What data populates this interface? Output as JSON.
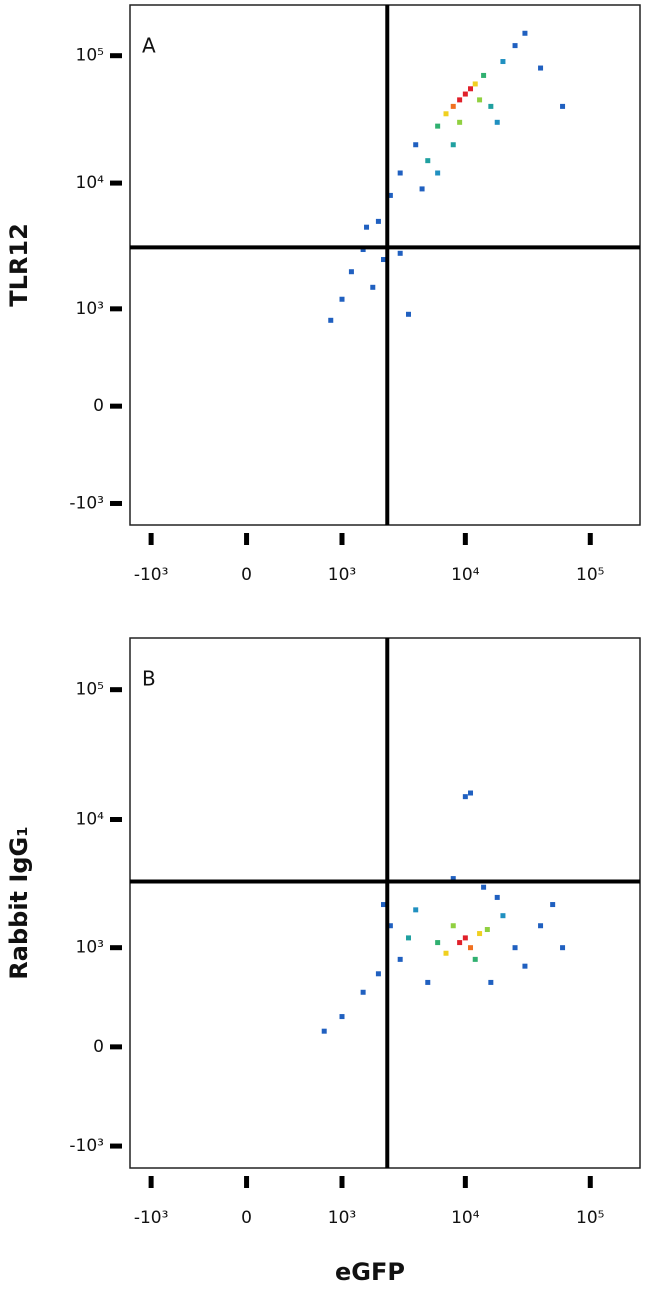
{
  "chart_data": [
    {
      "type": "scatter",
      "panel_label": "A",
      "ylabel": "TLR12",
      "xscale": "asinh",
      "yscale": "asinh",
      "xlim": [
        -1500,
        250000
      ],
      "ylim": [
        -1500,
        250000
      ],
      "xticks": [
        {
          "value": -1000,
          "label": "-10³"
        },
        0,
        {
          "value": 1000,
          "label": "10³"
        },
        {
          "value": 10000,
          "label": "10⁴"
        },
        {
          "value": 100000,
          "label": "10⁵"
        }
      ],
      "yticks": [
        {
          "value": -1000,
          "label": "-10³"
        },
        0,
        {
          "value": 1000,
          "label": "10³"
        },
        {
          "value": 10000,
          "label": "10⁴"
        },
        {
          "value": 100000,
          "label": "10⁵"
        }
      ],
      "gate": {
        "x": 2360,
        "y": 3120
      },
      "x": [
        9000,
        10000,
        8000,
        11000,
        7000,
        12000,
        6000,
        14000,
        9000,
        13000,
        4000,
        3000,
        2500,
        2000,
        1500,
        1200,
        1000,
        800,
        1800,
        3500,
        20000,
        25000,
        30000,
        5000,
        16000,
        4500,
        6000,
        18000,
        2200,
        1600,
        40000,
        60000,
        3000,
        8000
      ],
      "y": [
        45000,
        50000,
        40000,
        55000,
        35000,
        60000,
        28000,
        70000,
        30000,
        45000,
        20000,
        12000,
        8000,
        5000,
        3000,
        2000,
        1200,
        800,
        1500,
        900,
        90000,
        120000,
        150000,
        15000,
        40000,
        9000,
        12000,
        30000,
        2500,
        4500,
        80000,
        40000,
        2800,
        20000
      ],
      "colors": [
        "#e0202a",
        "#e0202a",
        "#f07020",
        "#e0202a",
        "#f0d020",
        "#f0d020",
        "#30b070",
        "#30b070",
        "#90d040",
        "#90d040",
        "#2060c0",
        "#2060c0",
        "#2060c0",
        "#2060c0",
        "#2060c0",
        "#2060c0",
        "#2060c0",
        "#2060c0",
        "#2060c0",
        "#2060c0",
        "#2090c0",
        "#2060c0",
        "#2060c0",
        "#20a0a0",
        "#20a0a0",
        "#2060c0",
        "#2090c0",
        "#2090c0",
        "#2060c0",
        "#2060c0",
        "#2060c0",
        "#2060c0",
        "#2060c0",
        "#20a0a0"
      ]
    },
    {
      "type": "scatter",
      "panel_label": "B",
      "ylabel": "Rabbit IgG₁",
      "xlabel": "eGFP",
      "xscale": "asinh",
      "yscale": "asinh",
      "xlim": [
        -1500,
        250000
      ],
      "ylim": [
        -1500,
        250000
      ],
      "xticks": [
        {
          "value": -1000,
          "label": "-10³"
        },
        0,
        {
          "value": 1000,
          "label": "10³"
        },
        {
          "value": 10000,
          "label": "10⁴"
        },
        {
          "value": 100000,
          "label": "10⁵"
        }
      ],
      "yticks": [
        {
          "value": -1000,
          "label": "-10³"
        },
        0,
        {
          "value": 1000,
          "label": "10³"
        },
        {
          "value": 10000,
          "label": "10⁴"
        },
        {
          "value": 100000,
          "label": "10⁵"
        }
      ],
      "gate": {
        "x": 2360,
        "y": 3320
      },
      "x": [
        9000,
        10000,
        11000,
        7000,
        13000,
        8000,
        12000,
        6000,
        15000,
        3000,
        2500,
        2000,
        1500,
        1000,
        700,
        4000,
        20000,
        25000,
        30000,
        18000,
        5000,
        3500,
        2200,
        40000,
        60000,
        10000,
        11000,
        8000,
        14000,
        16000,
        50000
      ],
      "y": [
        1100,
        1200,
        1000,
        900,
        1300,
        1500,
        800,
        1100,
        1400,
        800,
        1500,
        600,
        400,
        200,
        100,
        2000,
        1800,
        1000,
        700,
        2500,
        500,
        1200,
        2200,
        1500,
        1000,
        15000,
        16000,
        3500,
        3000,
        500,
        2200
      ],
      "colors": [
        "#e0202a",
        "#e0202a",
        "#f07020",
        "#f0d020",
        "#f0d020",
        "#90d040",
        "#30b070",
        "#30b070",
        "#90d040",
        "#2060c0",
        "#2060c0",
        "#2060c0",
        "#2060c0",
        "#2060c0",
        "#2060c0",
        "#2090c0",
        "#2090c0",
        "#2060c0",
        "#2060c0",
        "#2060c0",
        "#2060c0",
        "#20a0a0",
        "#2060c0",
        "#2060c0",
        "#2060c0",
        "#2060c0",
        "#2060c0",
        "#2060c0",
        "#2060c0",
        "#2060c0",
        "#2060c0"
      ]
    }
  ]
}
